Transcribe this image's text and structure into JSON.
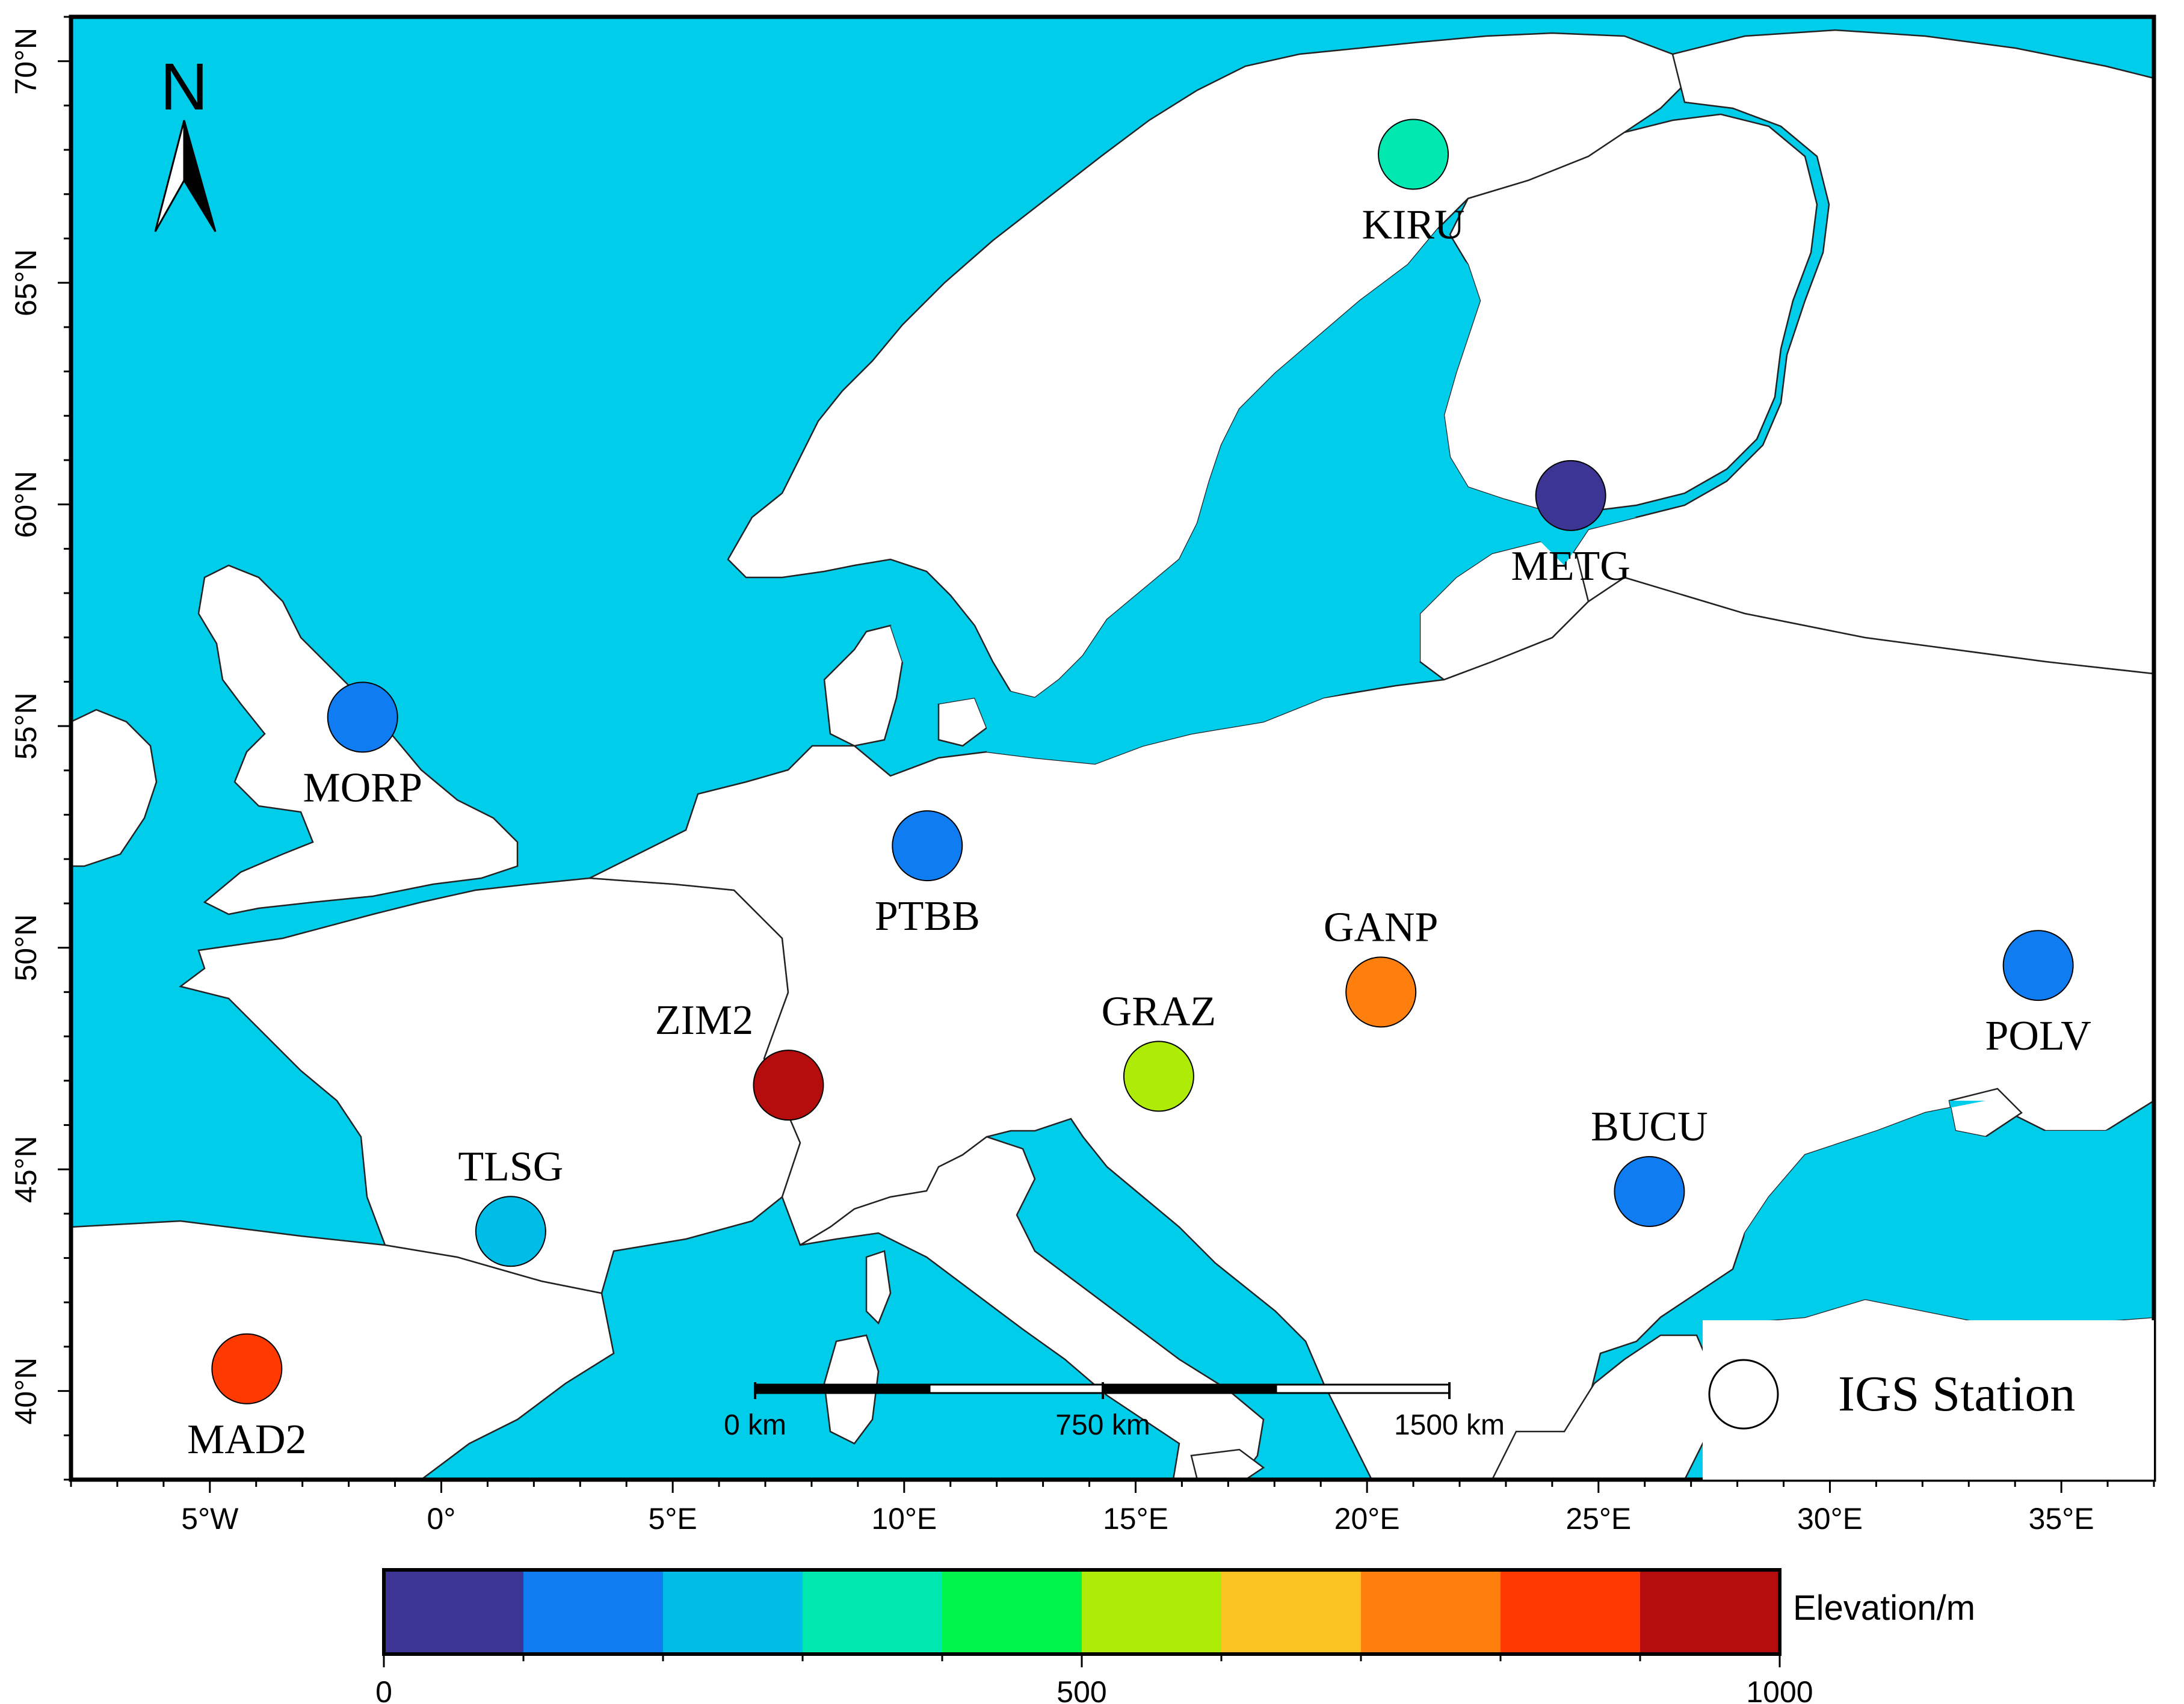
{
  "map": {
    "lon_range": [
      -8,
      37
    ],
    "lat_range": [
      38,
      71
    ],
    "sea_color": "#00cdea",
    "land_color": "#ffffff",
    "lon_ticks": [
      {
        "lon": -5,
        "label": "5°W"
      },
      {
        "lon": 0,
        "label": "0°"
      },
      {
        "lon": 5,
        "label": "5°E"
      },
      {
        "lon": 10,
        "label": "10°E"
      },
      {
        "lon": 15,
        "label": "15°E"
      },
      {
        "lon": 20,
        "label": "20°E"
      },
      {
        "lon": 25,
        "label": "25°E"
      },
      {
        "lon": 30,
        "label": "30°E"
      },
      {
        "lon": 35,
        "label": "35°E"
      }
    ],
    "lat_ticks": [
      {
        "lat": 40,
        "label": "40°N"
      },
      {
        "lat": 45,
        "label": "45°N"
      },
      {
        "lat": 50,
        "label": "50°N"
      },
      {
        "lat": 55,
        "label": "55°N"
      },
      {
        "lat": 60,
        "label": "60°N"
      },
      {
        "lat": 65,
        "label": "65°N"
      },
      {
        "lat": 70,
        "label": "70°N"
      }
    ]
  },
  "north_arrow": {
    "label": "N"
  },
  "stations": [
    {
      "name": "KIRU",
      "lon": 21.0,
      "lat": 67.9,
      "elevation": 390,
      "color": "#00e8b0"
    },
    {
      "name": "METG",
      "lon": 24.4,
      "lat": 60.2,
      "elevation": 60,
      "color": "#3d3594"
    },
    {
      "name": "MORP",
      "lon": -1.7,
      "lat": 55.2,
      "elevation": 140,
      "color": "#0f7cf2"
    },
    {
      "name": "PTBB",
      "lon": 10.5,
      "lat": 52.3,
      "elevation": 130,
      "color": "#0f7cf2"
    },
    {
      "name": "GANP",
      "lon": 20.3,
      "lat": 49.0,
      "elevation": 750,
      "color": "#ff7f0e"
    },
    {
      "name": "POLV",
      "lon": 34.5,
      "lat": 49.6,
      "elevation": 180,
      "color": "#0f7cf2"
    },
    {
      "name": "ZIM2",
      "lon": 7.5,
      "lat": 46.9,
      "elevation": 950,
      "color": "#b50d0d"
    },
    {
      "name": "GRAZ",
      "lon": 15.5,
      "lat": 47.1,
      "elevation": 540,
      "color": "#aeec07"
    },
    {
      "name": "TLSG",
      "lon": 1.5,
      "lat": 43.6,
      "elevation": 210,
      "color": "#00bde8"
    },
    {
      "name": "BUCU",
      "lon": 26.1,
      "lat": 44.5,
      "elevation": 140,
      "color": "#0f7cf2"
    },
    {
      "name": "MAD2",
      "lon": -4.2,
      "lat": 40.5,
      "elevation": 850,
      "color": "#ff3a00"
    }
  ],
  "scale_bar": {
    "labels": [
      "0 km",
      "750 km",
      "1500 km"
    ]
  },
  "legend": {
    "label": "IGS Station"
  },
  "colorbar": {
    "label": "Elevation/m",
    "min": 0,
    "max": 1000,
    "tick_labels": [
      {
        "value": 0,
        "label": "0"
      },
      {
        "value": 500,
        "label": "500"
      },
      {
        "value": 1000,
        "label": "1000"
      }
    ],
    "colors": [
      "#3d3594",
      "#0f7cf2",
      "#00bde8",
      "#00e8b0",
      "#00f54a",
      "#aeec07",
      "#fcc423",
      "#ff7f0e",
      "#ff3a00",
      "#b50d0d"
    ]
  }
}
